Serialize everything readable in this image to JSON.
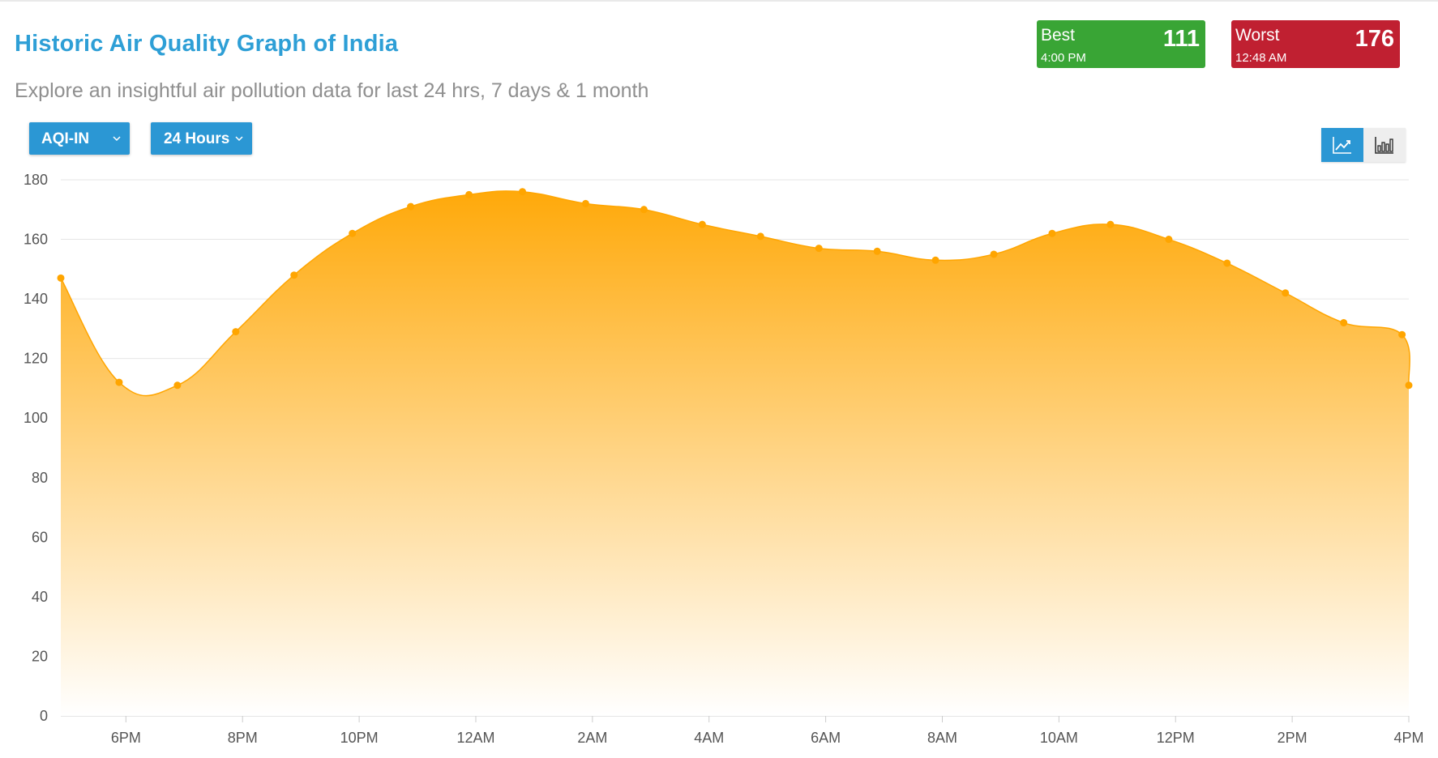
{
  "header": {
    "title": "Historic Air Quality Graph of India",
    "subtitle": "Explore an insightful air pollution data for last 24 hrs, 7 days & 1 month"
  },
  "summary": {
    "best": {
      "label": "Best",
      "value": "111",
      "time": "4:00 PM",
      "color": "#39a535"
    },
    "worst": {
      "label": "Worst",
      "value": "176",
      "time": "12:48 AM",
      "color": "#c02031"
    }
  },
  "controls": {
    "metric_select": {
      "value": "AQI-IN",
      "icon": "chevron-down-icon"
    },
    "range_select": {
      "value": "24 Hours",
      "icon": "chevron-down-icon"
    },
    "view_toggle": {
      "active": "line",
      "options": [
        {
          "name": "line-chart-icon",
          "active": true
        },
        {
          "name": "bar-chart-icon",
          "active": false
        }
      ]
    }
  },
  "chart_data": {
    "type": "area",
    "title": "",
    "xlabel": "",
    "ylabel": "",
    "ylim": [
      0,
      180
    ],
    "y_ticks": [
      "0",
      "20",
      "40",
      "60",
      "80",
      "100",
      "120",
      "140",
      "160",
      "180"
    ],
    "x_tick_labels": [
      "6PM",
      "8PM",
      "10PM",
      "12AM",
      "2AM",
      "4AM",
      "6AM",
      "8AM",
      "10AM",
      "12PM",
      "2PM",
      "4PM"
    ],
    "grid": "horizontal",
    "legend": "none",
    "colors": {
      "fill_top": "#ffa90a",
      "fill_bottom": "#ffffff",
      "points": "#ffa500",
      "gridline": "#e6e6e6"
    },
    "series": [
      {
        "values": [
          {
            "t": "4:53 PM",
            "aqi": 147
          },
          {
            "t": "5:53 PM",
            "aqi": 112
          },
          {
            "t": "6:53 PM",
            "aqi": 111
          },
          {
            "t": "7:53 PM",
            "aqi": 129
          },
          {
            "t": "8:53 PM",
            "aqi": 148
          },
          {
            "t": "9:53 PM",
            "aqi": 162
          },
          {
            "t": "10:53 PM",
            "aqi": 171
          },
          {
            "t": "11:53 PM",
            "aqi": 175
          },
          {
            "t": "12:48 AM",
            "aqi": 176
          },
          {
            "t": "1:53 AM",
            "aqi": 172
          },
          {
            "t": "2:53 AM",
            "aqi": 170
          },
          {
            "t": "3:53 AM",
            "aqi": 165
          },
          {
            "t": "4:53 AM",
            "aqi": 161
          },
          {
            "t": "5:53 AM",
            "aqi": 157
          },
          {
            "t": "6:53 AM",
            "aqi": 156
          },
          {
            "t": "7:53 AM",
            "aqi": 153
          },
          {
            "t": "8:53 AM",
            "aqi": 155
          },
          {
            "t": "9:53 AM",
            "aqi": 162
          },
          {
            "t": "10:53 AM",
            "aqi": 165
          },
          {
            "t": "11:53 AM",
            "aqi": 160
          },
          {
            "t": "12:53 PM",
            "aqi": 152
          },
          {
            "t": "1:53 PM",
            "aqi": 142
          },
          {
            "t": "2:53 PM",
            "aqi": 132
          },
          {
            "t": "3:53 PM",
            "aqi": 128
          },
          {
            "t": "4:00 PM",
            "aqi": 111
          }
        ]
      }
    ]
  }
}
